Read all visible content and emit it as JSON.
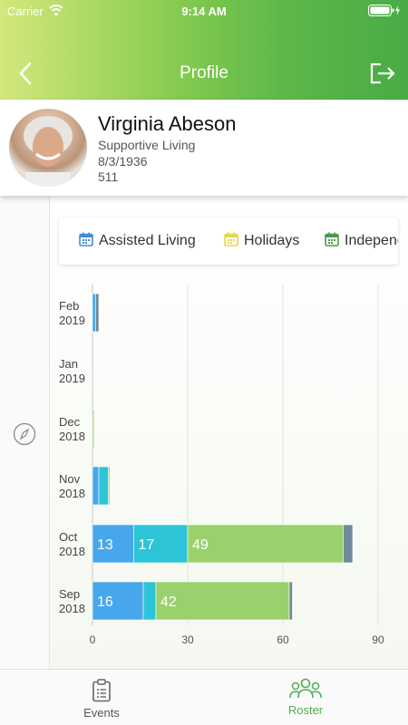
{
  "status_bar": {
    "carrier": "Carrier",
    "time": "9:14 AM"
  },
  "nav": {
    "title": "Profile"
  },
  "profile": {
    "name": "Virginia Abeson",
    "care_level": "Supportive Living",
    "birthdate": "8/3/1936",
    "room": "511"
  },
  "legend": [
    {
      "label": "Assisted Living",
      "color": "#3f8ed8"
    },
    {
      "label": "Holidays",
      "color": "#e5d84a"
    },
    {
      "label": "Independent Living",
      "color": "#4a9a4a"
    }
  ],
  "colors": {
    "assisted": "#47a7ec",
    "teal": "#2ec4d8",
    "green": "#9bd16c",
    "grey": "#6f8a9a",
    "accent": "#4caf50"
  },
  "chart_data": {
    "type": "bar",
    "orientation": "horizontal",
    "stacked": true,
    "categories": [
      "Feb 2019",
      "Jan 2019",
      "Dec 2018",
      "Nov 2018",
      "Oct 2018",
      "Sep 2018"
    ],
    "series": [
      {
        "color": "#47a7ec",
        "values": [
          1,
          0,
          0,
          2,
          13,
          16
        ]
      },
      {
        "color": "#2ec4d8",
        "values": [
          0,
          0,
          0,
          3,
          17,
          4
        ]
      },
      {
        "color": "#9bd16c",
        "values": [
          0,
          0,
          0.5,
          0.5,
          49,
          42
        ]
      },
      {
        "color": "#6f8a9a",
        "values": [
          1,
          0,
          0,
          0,
          3,
          1
        ]
      }
    ],
    "data_labels": [
      {
        "category": "Oct 2018",
        "series": 0,
        "text": "13"
      },
      {
        "category": "Oct 2018",
        "series": 1,
        "text": "17"
      },
      {
        "category": "Oct 2018",
        "series": 2,
        "text": "49"
      },
      {
        "category": "Sep 2018",
        "series": 0,
        "text": "16"
      },
      {
        "category": "Sep 2018",
        "series": 2,
        "text": "42"
      }
    ],
    "xticks": [
      "0",
      "30",
      "60",
      "90"
    ],
    "xlim": [
      0,
      90
    ],
    "grid": true
  },
  "tabs": [
    {
      "label": "Events",
      "active": false
    },
    {
      "label": "Roster",
      "active": true
    }
  ]
}
